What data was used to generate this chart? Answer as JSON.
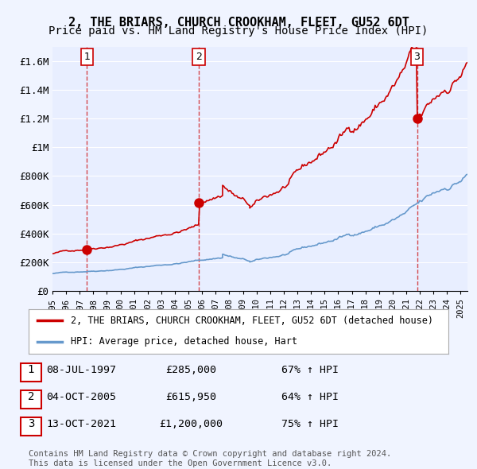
{
  "title": "2, THE BRIARS, CHURCH CROOKHAM, FLEET, GU52 6DT",
  "subtitle": "Price paid vs. HM Land Registry's House Price Index (HPI)",
  "xlabel": "",
  "ylabel": "",
  "ylim": [
    0,
    1700000
  ],
  "yticks": [
    0,
    200000,
    400000,
    600000,
    800000,
    1000000,
    1200000,
    1400000,
    1600000
  ],
  "ytick_labels": [
    "£0",
    "£200K",
    "£400K",
    "£600K",
    "£800K",
    "£1M",
    "£1.2M",
    "£1.4M",
    "£1.6M"
  ],
  "background_color": "#f0f4ff",
  "plot_bg_color": "#e8eeff",
  "grid_color": "#ffffff",
  "sale1_date": 1997.53,
  "sale1_price": 285000,
  "sale1_label": "1",
  "sale2_date": 2005.76,
  "sale2_price": 615950,
  "sale2_label": "2",
  "sale3_date": 2021.79,
  "sale3_price": 1200000,
  "sale3_label": "3",
  "red_color": "#cc0000",
  "blue_color": "#6699cc",
  "legend_label_red": "2, THE BRIARS, CHURCH CROOKHAM, FLEET, GU52 6DT (detached house)",
  "legend_label_blue": "HPI: Average price, detached house, Hart",
  "table_rows": [
    {
      "num": "1",
      "date": "08-JUL-1997",
      "price": "£285,000",
      "pct": "67% ↑ HPI"
    },
    {
      "num": "2",
      "date": "04-OCT-2005",
      "price": "£615,950",
      "pct": "64% ↑ HPI"
    },
    {
      "num": "3",
      "date": "13-OCT-2021",
      "price": "£1,200,000",
      "pct": "75% ↑ HPI"
    }
  ],
  "footer": "Contains HM Land Registry data © Crown copyright and database right 2024.\nThis data is licensed under the Open Government Licence v3.0.",
  "title_fontsize": 11,
  "subtitle_fontsize": 10,
  "tick_fontsize": 9
}
